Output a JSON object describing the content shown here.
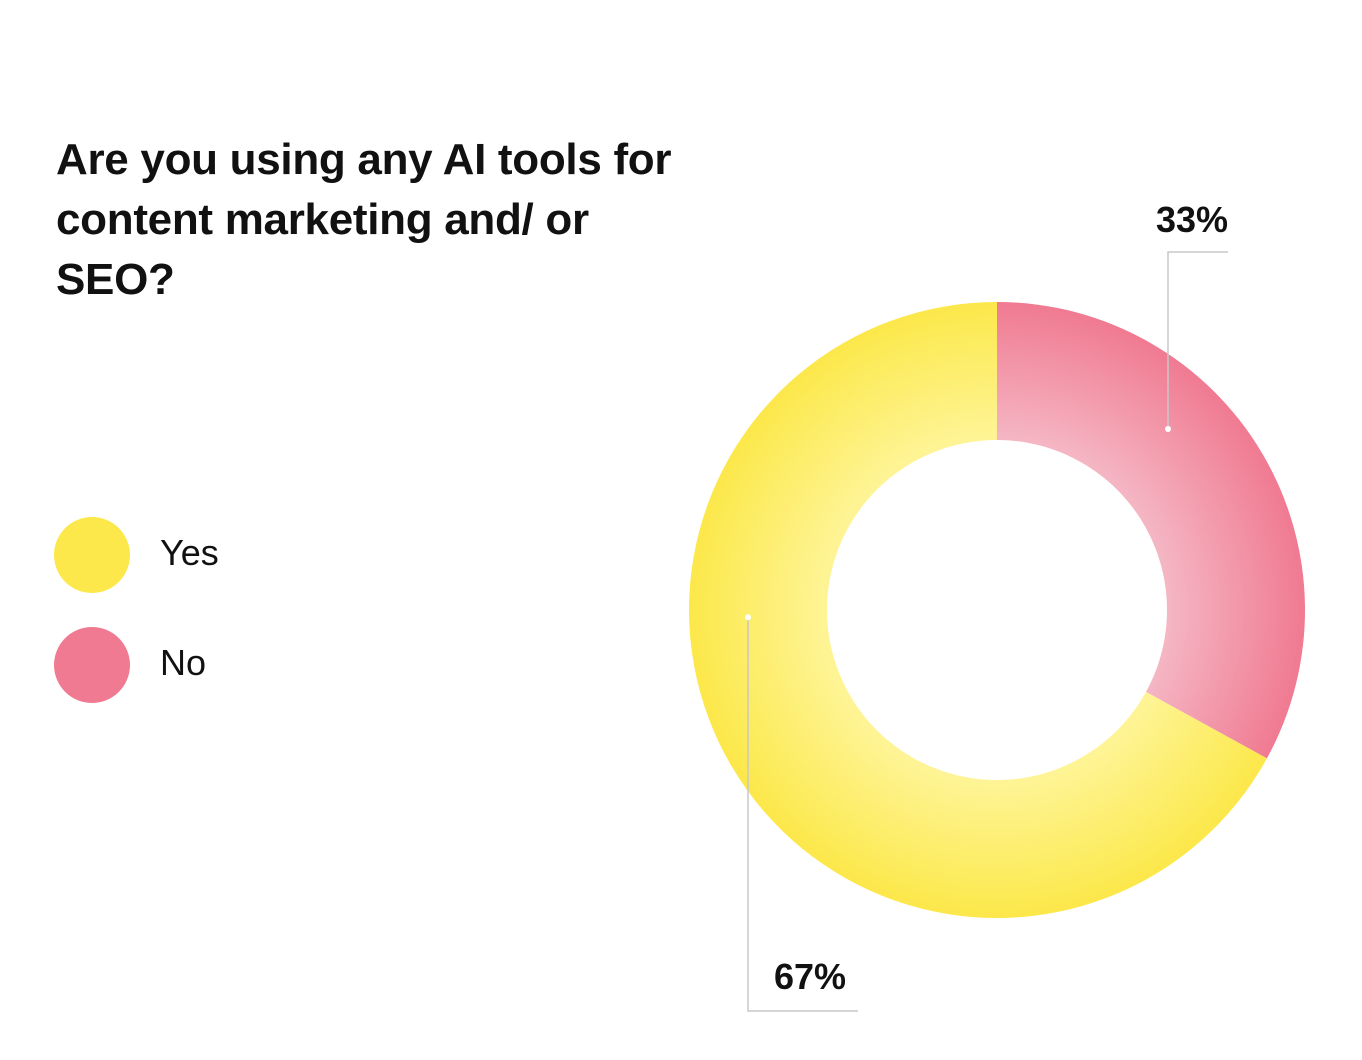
{
  "chart_data": {
    "type": "pie",
    "style": "donut",
    "title": "Are you using any AI tools for content marketing and/ or SEO?",
    "slices": [
      {
        "name": "Yes",
        "value": 67,
        "label": "67%",
        "color": "#FCE84A",
        "highlight": "#FEF7A8"
      },
      {
        "name": "No",
        "value": 33,
        "label": "33%",
        "color": "#F07A91",
        "highlight": "#F6C4CF"
      }
    ],
    "legend_position": "left"
  }
}
